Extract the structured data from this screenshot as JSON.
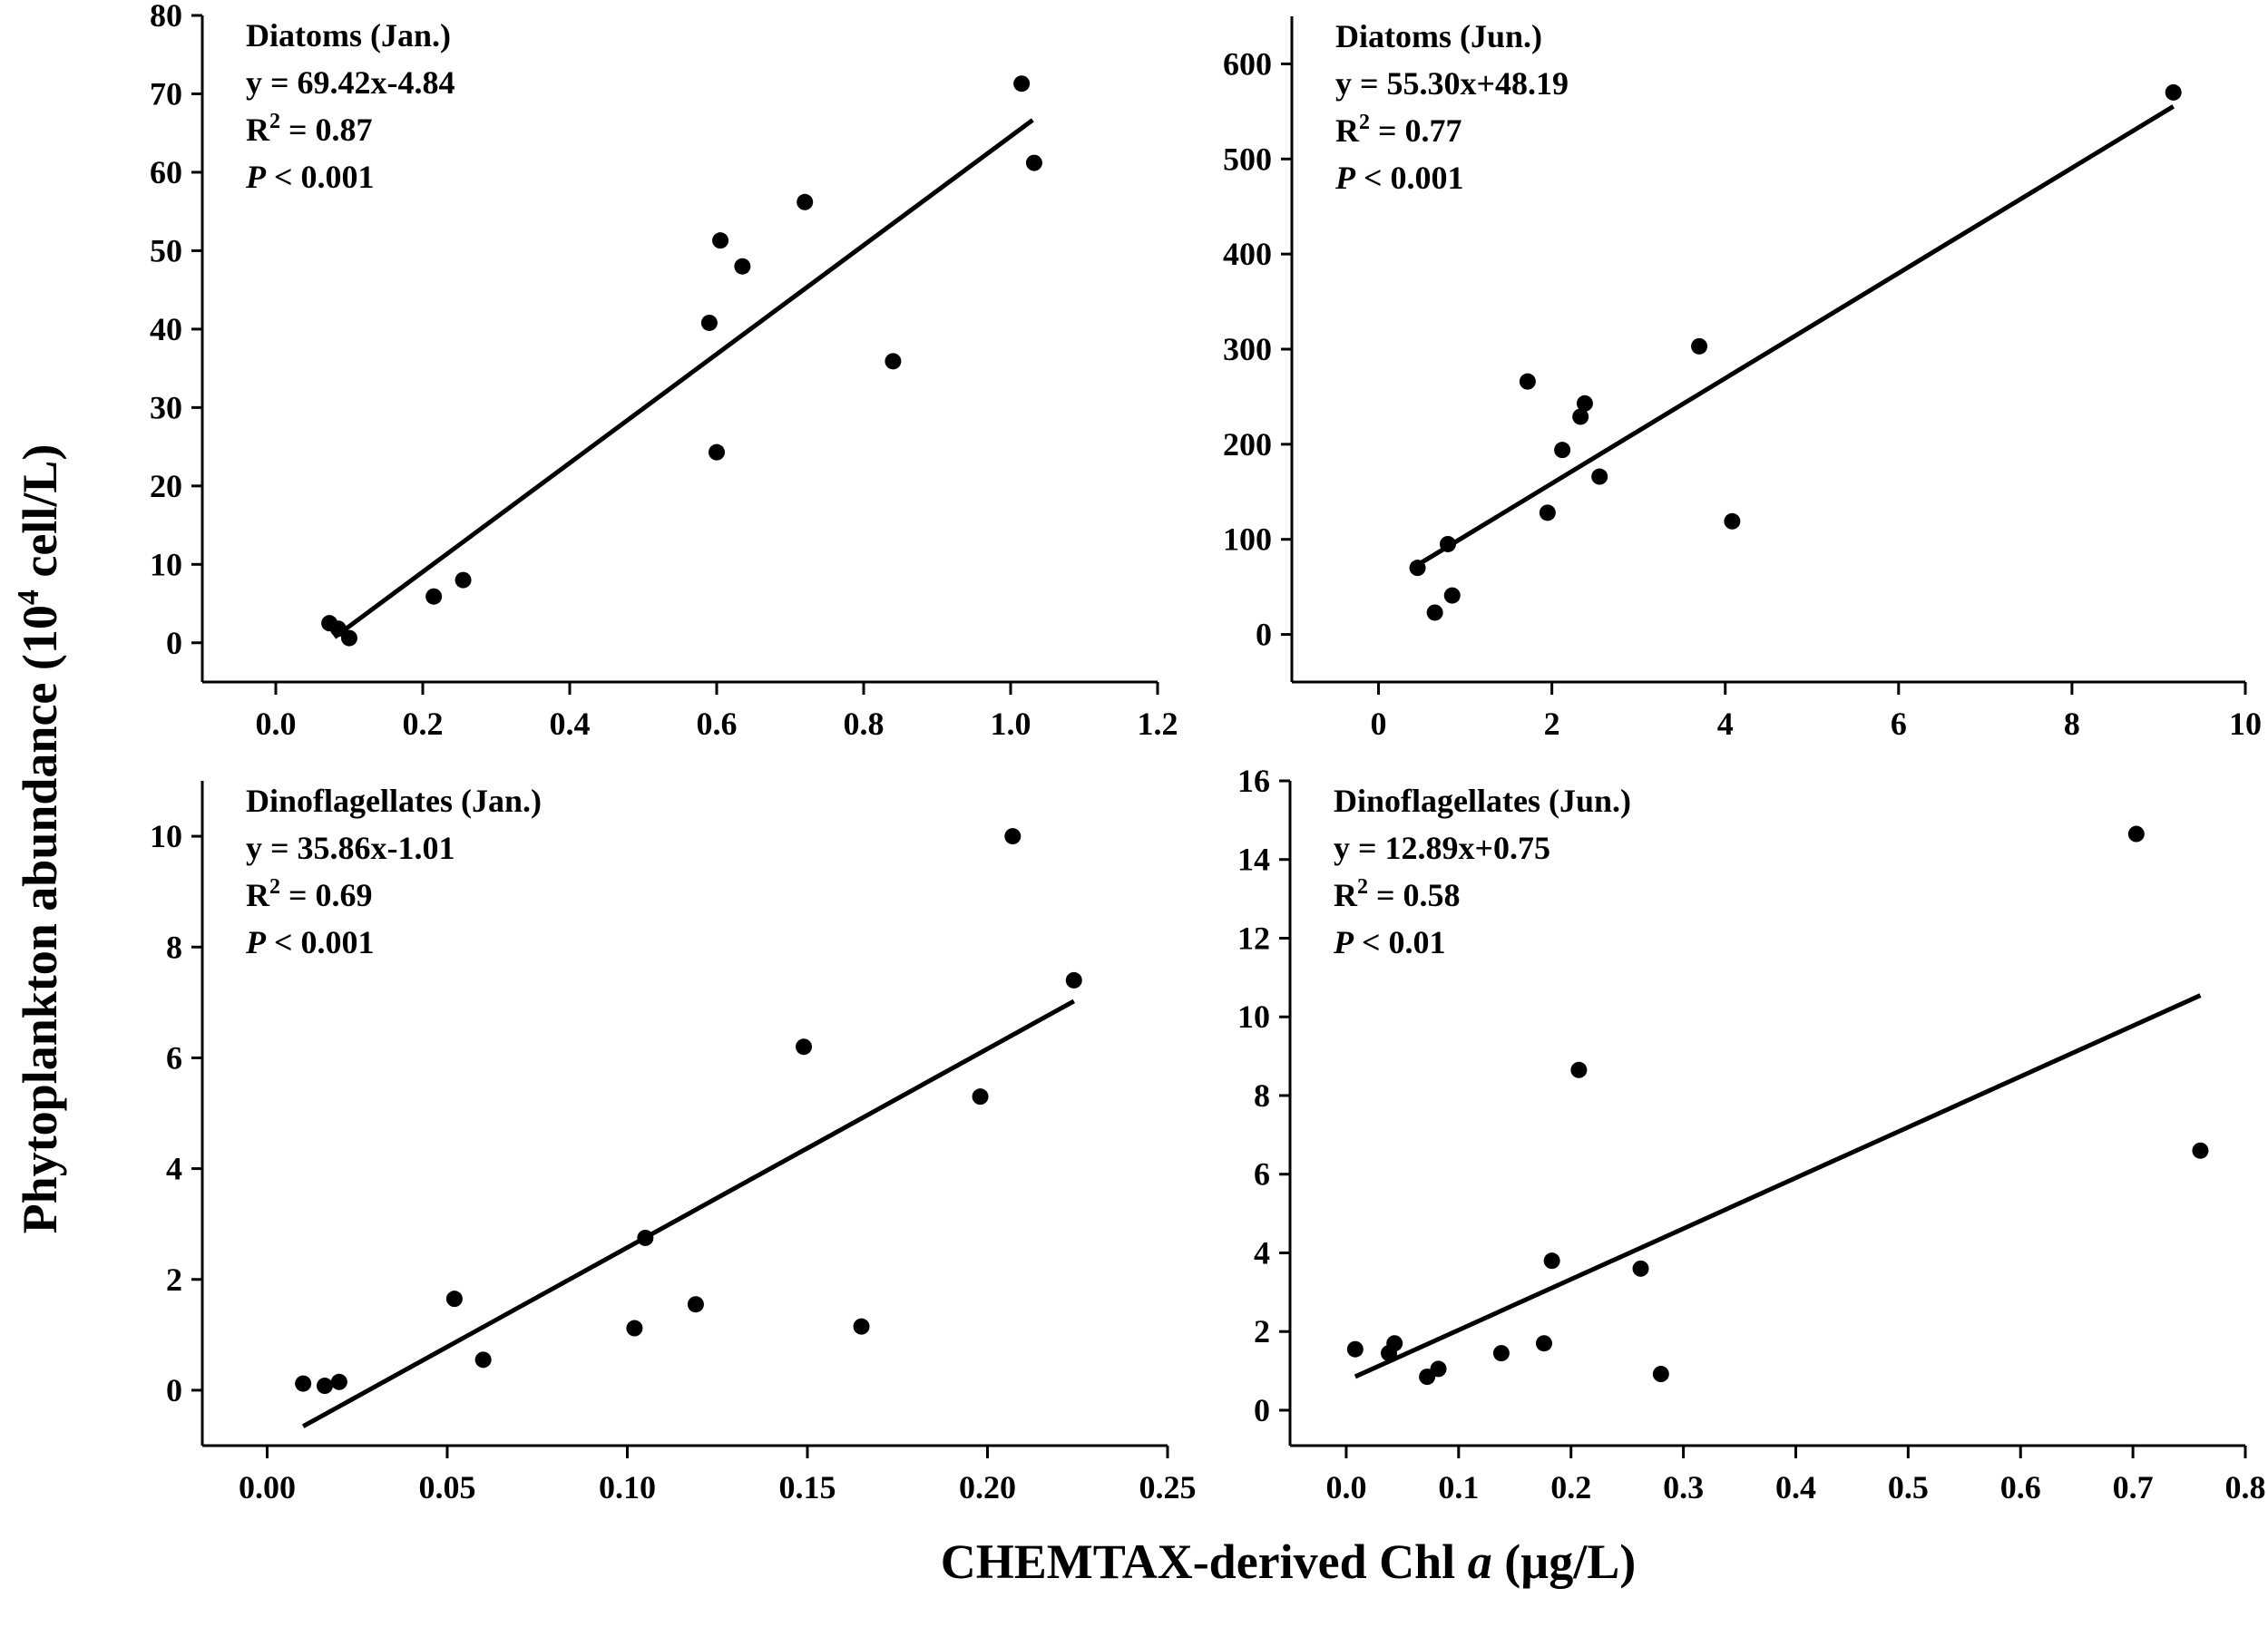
{
  "y_label": "Phytoplankton abundance (10",
  "y_label_sup": "4",
  "y_label_end": " cell/L)",
  "x_label": "CHEMTAX-derived Chl ",
  "x_label_italic": "a",
  "x_label_end": " (µg/L)",
  "chart_data": [
    {
      "type": "scatter",
      "title": "Diatoms (Jan.)",
      "equation": "y = 69.42x-4.84",
      "r2_label": "R",
      "r2_sup": "2",
      "r2_value": " = 0.87",
      "p_label": "P",
      "p_value": " < 0.001",
      "slope": 69.42,
      "intercept": -4.84,
      "fit_x": [
        0.08,
        1.03
      ],
      "xlim": [
        -0.1,
        1.2
      ],
      "ylim": [
        -5,
        80
      ],
      "xticks": [
        0.0,
        0.2,
        0.4,
        0.6,
        0.8,
        1.0,
        1.2
      ],
      "xtick_decimals": 1,
      "yticks": [
        0,
        10,
        20,
        30,
        40,
        50,
        60,
        70,
        80
      ],
      "ytick_decimals": 0,
      "x": [
        0.073,
        0.085,
        0.1,
        0.215,
        0.255,
        0.59,
        0.6,
        0.605,
        0.635,
        0.72,
        0.84,
        1.015,
        1.032
      ],
      "y": [
        2.5,
        1.8,
        0.6,
        5.9,
        8.0,
        40.8,
        24.3,
        51.3,
        48.0,
        56.2,
        35.9,
        71.3,
        61.2
      ]
    },
    {
      "type": "scatter",
      "title": "Diatoms (Jun.)",
      "equation": "y = 55.30x+48.19",
      "r2_label": "R",
      "r2_sup": "2",
      "r2_value": " = 0.77",
      "p_label": "P",
      "p_value": " < 0.001",
      "slope": 55.3,
      "intercept": 48.19,
      "fit_x": [
        0.45,
        9.17
      ],
      "xlim": [
        -1,
        10
      ],
      "ylim": [
        -50,
        650
      ],
      "xticks": [
        0,
        2,
        4,
        6,
        8,
        10
      ],
      "xtick_decimals": 0,
      "yticks": [
        0,
        100,
        200,
        300,
        400,
        500,
        600
      ],
      "ytick_decimals": 0,
      "x": [
        0.45,
        0.65,
        0.8,
        0.85,
        1.72,
        1.95,
        2.12,
        2.33,
        2.38,
        2.55,
        3.7,
        4.08,
        9.17
      ],
      "y": [
        70,
        23,
        95,
        41,
        266,
        128,
        194,
        229,
        243,
        166,
        303,
        119,
        570
      ]
    },
    {
      "type": "scatter",
      "title": "Dinoflagellates (Jan.)",
      "equation": "y = 35.86x-1.01",
      "r2_label": "R",
      "r2_sup": "2",
      "r2_value": " = 0.69",
      "p_label": "P",
      "p_value": " < 0.001",
      "slope": 35.86,
      "intercept": -1.01,
      "fit_x": [
        0.01,
        0.224
      ],
      "xlim": [
        -0.018,
        0.25
      ],
      "ylim": [
        -1,
        11
      ],
      "xticks": [
        0.0,
        0.05,
        0.1,
        0.15,
        0.2,
        0.25
      ],
      "xtick_decimals": 2,
      "yticks": [
        0,
        2,
        4,
        6,
        8,
        10
      ],
      "ytick_decimals": 0,
      "x": [
        0.01,
        0.016,
        0.02,
        0.052,
        0.06,
        0.102,
        0.105,
        0.119,
        0.149,
        0.165,
        0.198,
        0.207,
        0.224
      ],
      "y": [
        0.12,
        0.08,
        0.15,
        1.65,
        0.55,
        1.12,
        2.75,
        1.55,
        6.2,
        1.15,
        5.3,
        10.0,
        7.4
      ]
    },
    {
      "type": "scatter",
      "title": "Dinoflagellates (Jun.)",
      "equation": "y = 12.89x+0.75",
      "r2_label": "R",
      "r2_sup": "2",
      "r2_value": " = 0.58",
      "p_label": "P",
      "p_value": " < 0.01",
      "slope": 12.89,
      "intercept": 0.75,
      "fit_x": [
        0.008,
        0.76
      ],
      "xlim": [
        -0.05,
        0.8
      ],
      "ylim": [
        -0.9,
        16
      ],
      "xticks": [
        0.0,
        0.1,
        0.2,
        0.3,
        0.4,
        0.5,
        0.6,
        0.7,
        0.8
      ],
      "xtick_decimals": 1,
      "yticks": [
        0,
        2,
        4,
        6,
        8,
        10,
        12,
        14,
        16
      ],
      "ytick_decimals": 0,
      "x": [
        0.008,
        0.038,
        0.043,
        0.072,
        0.082,
        0.138,
        0.176,
        0.183,
        0.207,
        0.262,
        0.28,
        0.703,
        0.76
      ],
      "y": [
        1.55,
        1.45,
        1.7,
        0.85,
        1.05,
        1.45,
        1.7,
        3.8,
        8.65,
        3.6,
        0.92,
        14.65,
        6.6
      ]
    }
  ]
}
